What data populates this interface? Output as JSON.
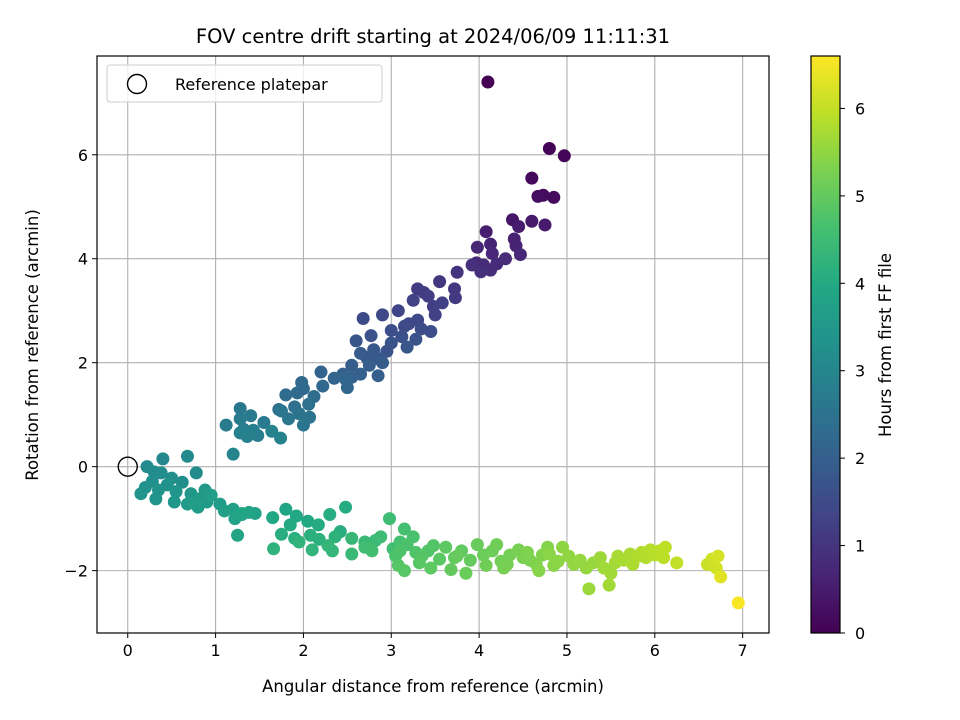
{
  "chart_data": {
    "type": "scatter",
    "title": "FOV centre drift starting at 2024/06/09 11:11:31",
    "xlabel": "Angular distance from reference (arcmin)",
    "ylabel": "Rotation from reference (arcmin)",
    "xlim": [
      -0.35,
      7.3
    ],
    "ylim": [
      -3.2,
      7.9
    ],
    "xticks": [
      0,
      1,
      2,
      3,
      4,
      5,
      6,
      7
    ],
    "yticks": [
      -2,
      0,
      2,
      4,
      6
    ],
    "grid": true,
    "legend": {
      "placement": "upper-left",
      "entries": [
        "Reference platepar"
      ]
    },
    "colorbar": {
      "label": "Hours from first FF file",
      "range": [
        0,
        6.6
      ],
      "ticks": [
        0,
        1,
        2,
        3,
        4,
        5,
        6
      ],
      "colormap": "viridis"
    },
    "reference_point": {
      "x": 0,
      "y": 0,
      "label": "Reference platepar"
    },
    "series": [
      {
        "points": [
          [
            4.1,
            7.4,
            0.0
          ],
          [
            4.8,
            6.12,
            0.05
          ],
          [
            4.97,
            5.98,
            0.08
          ],
          [
            4.6,
            5.55,
            0.15
          ],
          [
            4.73,
            5.22,
            0.18
          ],
          [
            4.85,
            5.18,
            0.2
          ],
          [
            4.67,
            5.2,
            0.22
          ],
          [
            4.38,
            4.75,
            0.4
          ],
          [
            4.6,
            4.72,
            0.45
          ],
          [
            4.75,
            4.65,
            0.47
          ],
          [
            4.45,
            4.62,
            0.5
          ],
          [
            4.08,
            4.52,
            0.55
          ],
          [
            4.4,
            4.38,
            0.6
          ],
          [
            4.42,
            4.25,
            0.62
          ],
          [
            4.13,
            4.28,
            0.65
          ],
          [
            4.15,
            4.1,
            0.68
          ],
          [
            3.98,
            4.22,
            0.7
          ],
          [
            4.47,
            4.08,
            0.72
          ],
          [
            3.97,
            3.92,
            0.75
          ],
          [
            4.05,
            3.88,
            0.78
          ],
          [
            4.2,
            3.9,
            0.8
          ],
          [
            4.3,
            4.0,
            0.82
          ],
          [
            4.13,
            3.78,
            0.85
          ],
          [
            3.92,
            3.88,
            0.88
          ],
          [
            4.02,
            3.75,
            0.9
          ],
          [
            3.75,
            3.74,
            1.0
          ],
          [
            3.55,
            3.56,
            1.05
          ],
          [
            3.72,
            3.42,
            1.08
          ],
          [
            3.73,
            3.25,
            1.1
          ],
          [
            3.3,
            3.42,
            1.15
          ],
          [
            3.37,
            3.35,
            1.18
          ],
          [
            3.42,
            3.28,
            1.2
          ],
          [
            3.48,
            3.08,
            1.22
          ],
          [
            3.5,
            2.92,
            1.25
          ],
          [
            3.58,
            3.15,
            1.28
          ],
          [
            3.25,
            3.2,
            1.3
          ],
          [
            3.08,
            3.0,
            1.35
          ],
          [
            3.2,
            2.75,
            1.4
          ],
          [
            3.3,
            2.82,
            1.42
          ],
          [
            2.9,
            2.92,
            1.45
          ],
          [
            2.68,
            2.85,
            1.5
          ],
          [
            3.15,
            2.7,
            1.52
          ],
          [
            3.34,
            2.65,
            1.55
          ],
          [
            3.45,
            2.6,
            1.57
          ],
          [
            3.0,
            2.62,
            1.6
          ],
          [
            3.12,
            2.5,
            1.62
          ],
          [
            2.77,
            2.52,
            1.65
          ],
          [
            3.28,
            2.45,
            1.68
          ],
          [
            3.0,
            2.38,
            1.7
          ],
          [
            2.95,
            2.22,
            1.72
          ],
          [
            2.6,
            2.42,
            1.75
          ],
          [
            3.18,
            2.3,
            1.78
          ],
          [
            2.8,
            2.25,
            1.8
          ],
          [
            2.72,
            2.1,
            1.82
          ],
          [
            2.85,
            2.08,
            1.85
          ],
          [
            2.65,
            2.18,
            1.88
          ],
          [
            2.9,
            2.0,
            1.9
          ],
          [
            2.75,
            1.95,
            1.92
          ],
          [
            2.55,
            1.95,
            1.95
          ],
          [
            2.85,
            1.75,
            1.98
          ],
          [
            2.65,
            1.78,
            2.0
          ],
          [
            2.55,
            1.72,
            2.02
          ],
          [
            2.45,
            1.78,
            2.05
          ],
          [
            2.35,
            1.7,
            2.1
          ],
          [
            2.2,
            1.82,
            2.12
          ],
          [
            2.48,
            1.68,
            2.15
          ],
          [
            2.5,
            1.52,
            2.18
          ],
          [
            2.22,
            1.55,
            2.22
          ],
          [
            1.98,
            1.62,
            2.25
          ],
          [
            2.0,
            1.5,
            2.28
          ],
          [
            1.93,
            1.42,
            2.3
          ],
          [
            1.8,
            1.38,
            2.32
          ],
          [
            2.12,
            1.35,
            2.35
          ],
          [
            1.72,
            1.1,
            2.4
          ],
          [
            1.9,
            1.15,
            2.42
          ],
          [
            2.06,
            1.2,
            2.45
          ],
          [
            1.95,
            1.02,
            2.5
          ],
          [
            2.07,
            0.95,
            2.52
          ],
          [
            1.83,
            0.92,
            2.55
          ],
          [
            1.75,
            1.07,
            2.58
          ],
          [
            2.0,
            0.8,
            2.6
          ],
          [
            1.28,
            1.12,
            2.65
          ],
          [
            1.4,
            0.98,
            2.68
          ],
          [
            1.55,
            0.85,
            2.7
          ],
          [
            1.28,
            0.92,
            2.72
          ],
          [
            1.12,
            0.8,
            2.75
          ],
          [
            1.48,
            0.6,
            2.78
          ],
          [
            1.32,
            0.72,
            2.8
          ],
          [
            1.43,
            0.7,
            2.82
          ],
          [
            1.28,
            0.65,
            2.85
          ],
          [
            1.36,
            0.58,
            2.88
          ],
          [
            1.64,
            0.68,
            2.9
          ],
          [
            1.74,
            0.55,
            2.92
          ],
          [
            1.2,
            0.24,
            2.95
          ],
          [
            0.4,
            0.15,
            3.05
          ],
          [
            0.68,
            0.2,
            3.08
          ],
          [
            0.22,
            0.0,
            3.12
          ],
          [
            0.78,
            -0.12,
            3.15
          ],
          [
            0.3,
            -0.1,
            3.18
          ],
          [
            0.38,
            -0.12,
            3.2
          ],
          [
            0.62,
            -0.3,
            3.22
          ],
          [
            0.5,
            -0.22,
            3.25
          ],
          [
            0.28,
            -0.28,
            3.28
          ],
          [
            0.45,
            -0.35,
            3.3
          ],
          [
            0.2,
            -0.4,
            3.32
          ],
          [
            0.35,
            -0.45,
            3.35
          ],
          [
            0.15,
            -0.52,
            3.38
          ],
          [
            0.32,
            -0.62,
            3.4
          ],
          [
            0.55,
            -0.48,
            3.42
          ],
          [
            0.53,
            -0.68,
            3.45
          ],
          [
            0.72,
            -0.52,
            3.48
          ],
          [
            0.88,
            -0.45,
            3.5
          ],
          [
            0.82,
            -0.62,
            3.52
          ],
          [
            0.68,
            -0.72,
            3.55
          ],
          [
            0.8,
            -0.78,
            3.58
          ],
          [
            0.9,
            -0.68,
            3.6
          ],
          [
            1.05,
            -0.72,
            3.62
          ],
          [
            0.95,
            -0.55,
            3.65
          ],
          [
            0.76,
            -0.7,
            3.68
          ],
          [
            1.1,
            -0.85,
            3.7
          ],
          [
            1.2,
            -0.82,
            3.72
          ],
          [
            1.3,
            -0.92,
            3.75
          ],
          [
            1.45,
            -0.9,
            3.78
          ],
          [
            1.22,
            -1.0,
            3.8
          ],
          [
            1.38,
            -0.88,
            3.82
          ],
          [
            1.25,
            -1.32,
            3.85
          ],
          [
            1.3,
            -0.9,
            3.87
          ],
          [
            1.8,
            -0.82,
            3.9
          ],
          [
            1.65,
            -0.98,
            3.92
          ],
          [
            1.92,
            -0.95,
            3.95
          ],
          [
            2.05,
            -1.05,
            3.97
          ],
          [
            1.85,
            -1.12,
            4.0
          ],
          [
            2.17,
            -1.12,
            4.02
          ],
          [
            2.48,
            -0.78,
            4.05
          ],
          [
            2.3,
            -0.92,
            4.07
          ],
          [
            2.42,
            -1.25,
            4.1
          ],
          [
            1.75,
            -1.3,
            4.12
          ],
          [
            1.9,
            -1.38,
            4.15
          ],
          [
            2.08,
            -1.32,
            4.17
          ],
          [
            2.18,
            -1.4,
            4.2
          ],
          [
            2.36,
            -1.35,
            4.22
          ],
          [
            1.66,
            -1.58,
            4.25
          ],
          [
            1.95,
            -1.45,
            4.27
          ],
          [
            2.1,
            -1.6,
            4.3
          ],
          [
            2.28,
            -1.52,
            4.32
          ],
          [
            2.33,
            -1.62,
            4.35
          ],
          [
            2.55,
            -1.38,
            4.37
          ],
          [
            2.7,
            -1.45,
            4.4
          ],
          [
            2.55,
            -1.68,
            4.42
          ],
          [
            2.82,
            -1.42,
            4.45
          ],
          [
            2.76,
            -1.55,
            4.47
          ],
          [
            2.88,
            -1.35,
            4.5
          ],
          [
            2.98,
            -1.0,
            4.52
          ],
          [
            2.7,
            -1.55,
            4.55
          ],
          [
            3.02,
            -1.58,
            4.57
          ],
          [
            2.78,
            -1.62,
            4.6
          ],
          [
            3.15,
            -1.2,
            4.62
          ],
          [
            3.1,
            -1.45,
            4.65
          ],
          [
            3.25,
            -1.35,
            4.67
          ],
          [
            3.18,
            -1.5,
            4.7
          ],
          [
            3.05,
            -1.72,
            4.72
          ],
          [
            3.1,
            -1.62,
            4.74
          ],
          [
            3.28,
            -1.65,
            4.76
          ],
          [
            3.42,
            -1.62,
            4.78
          ],
          [
            3.48,
            -1.52,
            4.8
          ],
          [
            3.35,
            -1.72,
            4.82
          ],
          [
            3.08,
            -1.9,
            4.84
          ],
          [
            3.15,
            -2.0,
            4.86
          ],
          [
            3.32,
            -1.85,
            4.88
          ],
          [
            3.55,
            -1.78,
            4.9
          ],
          [
            3.62,
            -1.55,
            4.92
          ],
          [
            3.45,
            -1.95,
            4.94
          ],
          [
            3.72,
            -1.75,
            4.96
          ],
          [
            3.8,
            -1.62,
            4.98
          ],
          [
            3.68,
            -1.98,
            5.0
          ],
          [
            3.9,
            -1.8,
            5.02
          ],
          [
            3.75,
            -1.72,
            5.04
          ],
          [
            3.98,
            -1.5,
            5.06
          ],
          [
            3.85,
            -2.05,
            5.08
          ],
          [
            4.05,
            -1.7,
            5.1
          ],
          [
            4.15,
            -1.62,
            5.12
          ],
          [
            4.2,
            -1.5,
            5.14
          ],
          [
            4.08,
            -1.9,
            5.16
          ],
          [
            4.25,
            -1.82,
            5.18
          ],
          [
            4.32,
            -1.88,
            5.2
          ],
          [
            4.35,
            -1.7,
            5.22
          ],
          [
            4.45,
            -1.6,
            5.24
          ],
          [
            4.28,
            -1.95,
            5.26
          ],
          [
            4.5,
            -1.75,
            5.28
          ],
          [
            4.58,
            -1.8,
            5.3
          ],
          [
            4.55,
            -1.65,
            5.32
          ],
          [
            4.65,
            -1.88,
            5.34
          ],
          [
            4.72,
            -1.7,
            5.36
          ],
          [
            4.78,
            -1.55,
            5.38
          ],
          [
            4.68,
            -2.0,
            5.4
          ],
          [
            4.85,
            -1.9,
            5.42
          ],
          [
            4.8,
            -1.68,
            5.44
          ],
          [
            4.9,
            -1.82,
            5.46
          ],
          [
            4.95,
            -1.55,
            5.48
          ],
          [
            5.02,
            -1.72,
            5.5
          ],
          [
            5.08,
            -1.88,
            5.52
          ],
          [
            5.15,
            -1.8,
            5.54
          ],
          [
            5.22,
            -1.95,
            5.56
          ],
          [
            5.3,
            -1.85,
            5.58
          ],
          [
            5.25,
            -2.35,
            5.6
          ],
          [
            5.38,
            -1.75,
            5.62
          ],
          [
            5.42,
            -1.95,
            5.64
          ],
          [
            5.5,
            -2.05,
            5.66
          ],
          [
            5.48,
            -2.28,
            5.68
          ],
          [
            5.55,
            -1.85,
            5.7
          ],
          [
            5.58,
            -1.72,
            5.72
          ],
          [
            5.65,
            -1.8,
            5.74
          ],
          [
            5.72,
            -1.68,
            5.76
          ],
          [
            5.75,
            -1.88,
            5.78
          ],
          [
            5.82,
            -1.72,
            5.8
          ],
          [
            5.85,
            -1.65,
            5.82
          ],
          [
            5.9,
            -1.75,
            5.84
          ],
          [
            5.95,
            -1.6,
            5.86
          ],
          [
            6.0,
            -1.7,
            5.88
          ],
          [
            6.05,
            -1.62,
            5.9
          ],
          [
            6.1,
            -1.75,
            5.92
          ],
          [
            6.12,
            -1.55,
            5.94
          ],
          [
            6.25,
            -1.85,
            5.97
          ],
          [
            6.6,
            -1.88,
            6.05
          ],
          [
            6.65,
            -1.78,
            6.1
          ],
          [
            6.7,
            -1.95,
            6.15
          ],
          [
            6.72,
            -1.72,
            6.2
          ],
          [
            6.75,
            -2.12,
            6.3
          ],
          [
            6.95,
            -2.62,
            6.55
          ]
        ]
      }
    ]
  }
}
